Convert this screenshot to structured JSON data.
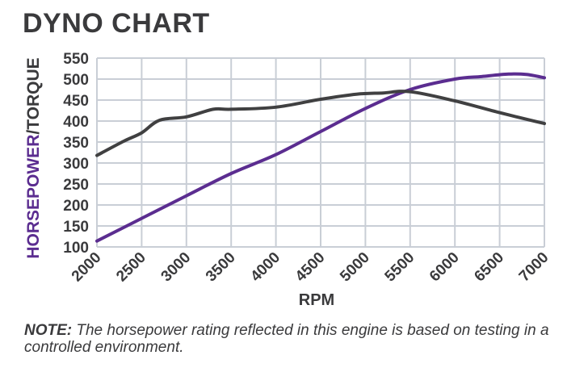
{
  "header": {
    "title": "DYNO CHART"
  },
  "note": {
    "label": "NOTE:",
    "text": " The horsepower rating reflected in this engine is based on testing in a controlled environment."
  },
  "colors": {
    "horsepower": "#5b2d90",
    "torque": "#404041",
    "grid": "#c9ced6",
    "text": "#3a3a3c"
  },
  "chart_data": {
    "type": "line",
    "title": "",
    "xlabel": "RPM",
    "ylabel_parts": [
      "HORSEPOWER",
      "/TORQUE"
    ],
    "xlim": [
      2000,
      7000
    ],
    "ylim": [
      100,
      550
    ],
    "x_ticks": [
      2000,
      2500,
      3000,
      3500,
      4000,
      4500,
      5000,
      5500,
      6000,
      6500,
      7000
    ],
    "y_ticks": [
      100,
      150,
      200,
      250,
      300,
      350,
      400,
      450,
      500,
      550
    ],
    "grid": true,
    "legend": "none",
    "series": [
      {
        "key": "horsepower",
        "x": [
          2000,
          2500,
          3000,
          3500,
          4000,
          4500,
          5000,
          5500,
          6000,
          6300,
          6600,
          6800,
          7000
        ],
        "y": [
          114,
          168,
          222,
          275,
          320,
          375,
          430,
          475,
          500,
          506,
          512,
          511,
          503
        ]
      },
      {
        "key": "torque",
        "x": [
          2000,
          2300,
          2500,
          2700,
          3000,
          3300,
          3500,
          4000,
          4500,
          4900,
          5200,
          5500,
          6000,
          6500,
          7000
        ],
        "y": [
          318,
          352,
          372,
          402,
          410,
          428,
          428,
          433,
          452,
          464,
          467,
          470,
          448,
          420,
          394
        ]
      }
    ]
  }
}
